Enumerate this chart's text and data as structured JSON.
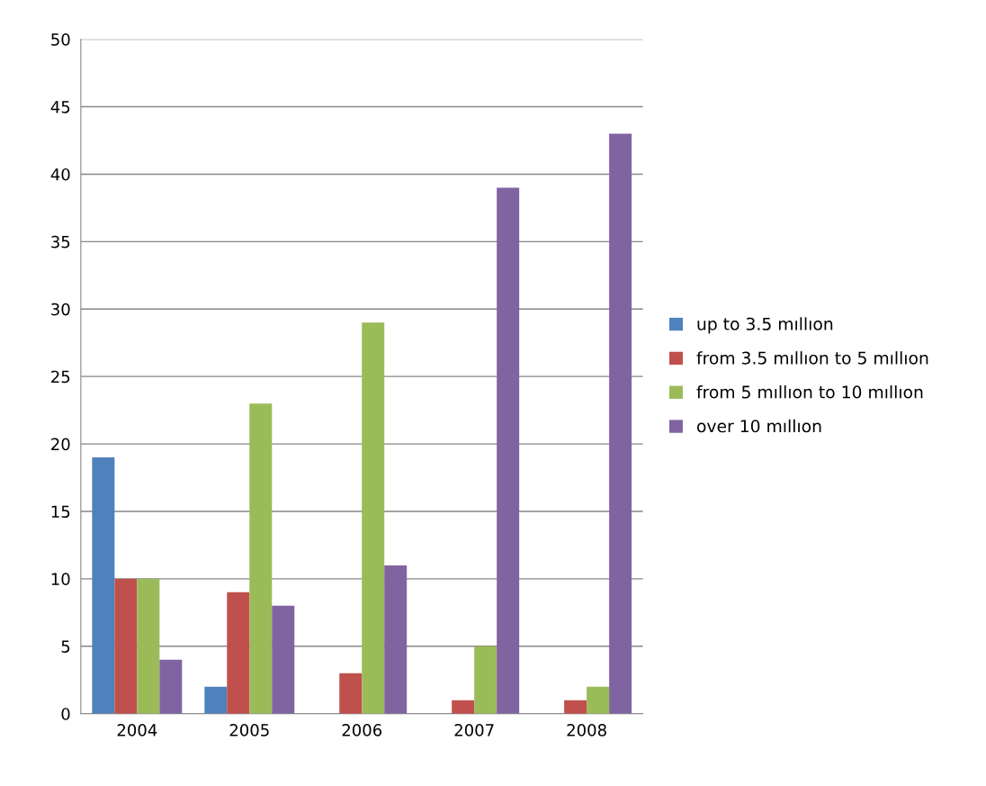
{
  "chart_data": {
    "type": "bar",
    "categories": [
      "2004",
      "2005",
      "2006",
      "2007",
      "2008"
    ],
    "series": [
      {
        "name": "up to 3.5 mıllıon",
        "color": "#4f81bd",
        "values": [
          19,
          2,
          0,
          0,
          0
        ]
      },
      {
        "name": "from 3.5 mıllıon to 5 mıllıon",
        "color": "#c0504d",
        "values": [
          10,
          9,
          3,
          1,
          1
        ]
      },
      {
        "name": "from 5 mıllıon to 10 mıllıon",
        "color": "#9bbb59",
        "values": [
          10,
          23,
          29,
          5,
          2
        ]
      },
      {
        "name": "over 10 mıllıon",
        "color": "#8064a2",
        "values": [
          4,
          8,
          11,
          39,
          43
        ]
      }
    ],
    "ylim": [
      0,
      50
    ],
    "yticks": [
      0,
      5,
      10,
      15,
      20,
      25,
      30,
      35,
      40,
      45,
      50
    ],
    "grid": "y",
    "legend": "right"
  }
}
